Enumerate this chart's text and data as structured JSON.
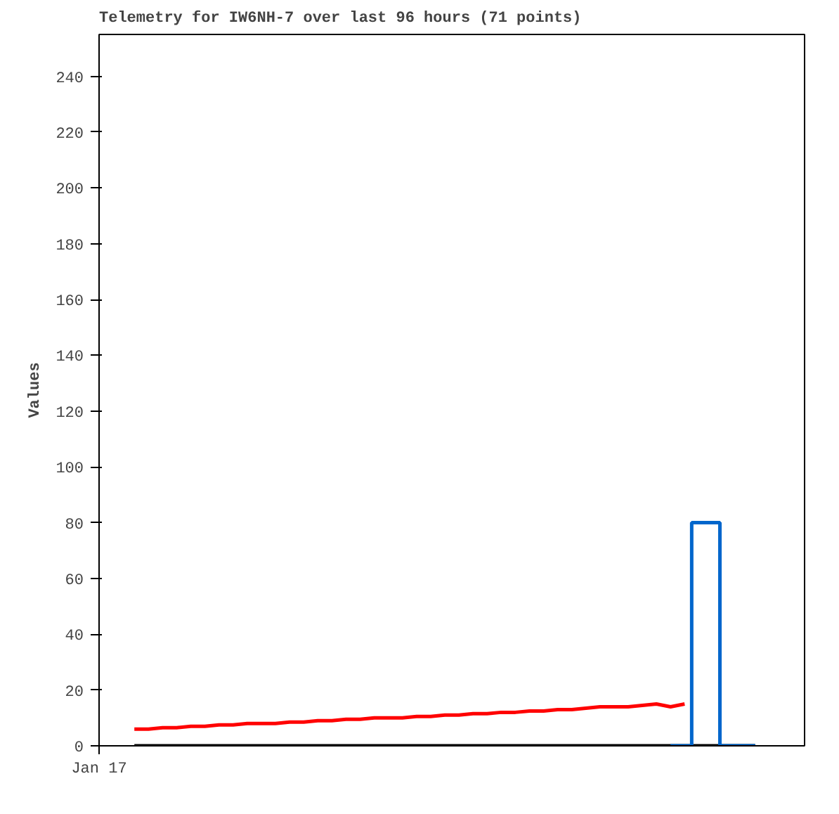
{
  "chart_data": {
    "type": "line",
    "title": "Telemetry for IW6NH-7 over last 96 hours (71 points)",
    "ylabel": "Values",
    "annotations": [
      "Jan 17"
    ],
    "categories": [
      null,
      null,
      null,
      null,
      null,
      null,
      null,
      null,
      null,
      null,
      null,
      null,
      null,
      null,
      null,
      null,
      null,
      null,
      null,
      null,
      null,
      null,
      null,
      null,
      null,
      null,
      null,
      null,
      null,
      null,
      null,
      null,
      null,
      null,
      null,
      null,
      null,
      null,
      null,
      null,
      null,
      null,
      null,
      null,
      null,
      null,
      null,
      null,
      null,
      null
    ],
    "ylim": [
      0,
      255
    ],
    "yticks": [
      0,
      20,
      40,
      60,
      80,
      100,
      120,
      140,
      160,
      180,
      200,
      220,
      240
    ],
    "grid": false,
    "marker": "none",
    "line_style": "solid",
    "series": [
      {
        "color": "#ff0000",
        "values": [
          null,
          null,
          6,
          6,
          6.5,
          6.5,
          7,
          7,
          7.5,
          7.5,
          8,
          8,
          8,
          8.5,
          8.5,
          9,
          9,
          9.5,
          9.5,
          10,
          10,
          10,
          10.5,
          10.5,
          11,
          11,
          11.5,
          11.5,
          12,
          12,
          12.5,
          12.5,
          13,
          13,
          13.5,
          14,
          14,
          14,
          14.5,
          15,
          14,
          15,
          null,
          null,
          null,
          null,
          null,
          null,
          null,
          null
        ]
      },
      {
        "color": "#000000",
        "values": [
          null,
          null,
          0,
          0,
          0,
          0,
          0,
          0,
          0,
          0,
          0,
          0,
          0,
          0,
          0,
          0,
          0,
          0,
          0,
          0,
          0,
          0,
          0,
          0,
          0,
          0,
          0,
          0,
          0,
          0,
          0,
          0,
          0,
          0,
          0,
          0,
          0,
          0,
          0,
          0,
          0,
          0,
          0,
          0,
          0,
          0,
          0,
          null,
          null,
          null
        ]
      },
      {
        "type": "step",
        "color": "#0066cc",
        "values": [
          null,
          null,
          null,
          null,
          null,
          null,
          null,
          null,
          null,
          null,
          null,
          null,
          null,
          null,
          null,
          null,
          null,
          null,
          null,
          null,
          null,
          null,
          null,
          null,
          null,
          null,
          null,
          null,
          null,
          null,
          null,
          null,
          null,
          null,
          null,
          null,
          null,
          null,
          null,
          null,
          0,
          0,
          80,
          80,
          0,
          0,
          0,
          null,
          null,
          null
        ]
      }
    ]
  }
}
